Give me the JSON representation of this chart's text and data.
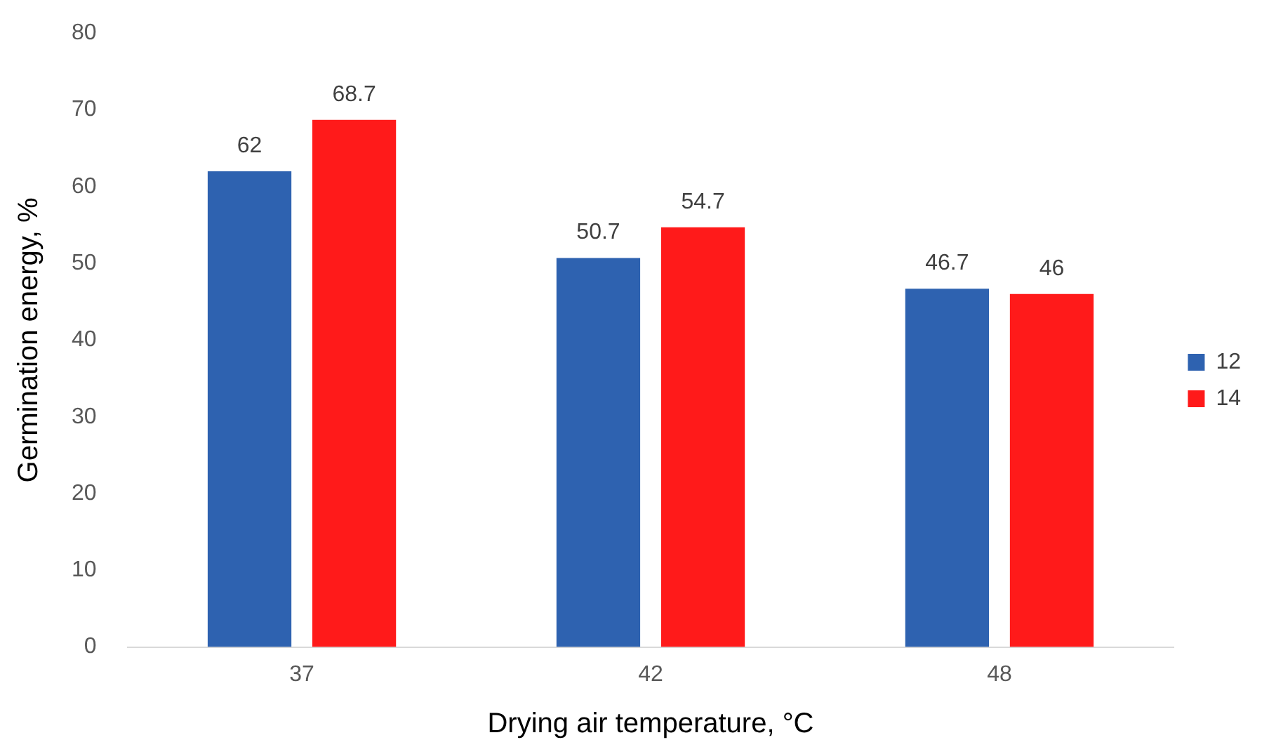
{
  "chart_data": {
    "type": "bar",
    "xlabel": "Drying air temperature, °C",
    "ylabel": "Germination energy, %",
    "categories": [
      "37",
      "42",
      "48"
    ],
    "series": [
      {
        "name": "12",
        "color": "#2e62b0",
        "values": [
          62,
          50.7,
          46.7
        ]
      },
      {
        "name": "14",
        "color": "#ff1a1a",
        "values": [
          68.7,
          54.7,
          46
        ]
      }
    ],
    "ylim": [
      0,
      80
    ],
    "yticks": [
      0,
      10,
      20,
      30,
      40,
      50,
      60,
      70,
      80
    ],
    "grid": false,
    "legend": "right",
    "data_labels": true
  }
}
